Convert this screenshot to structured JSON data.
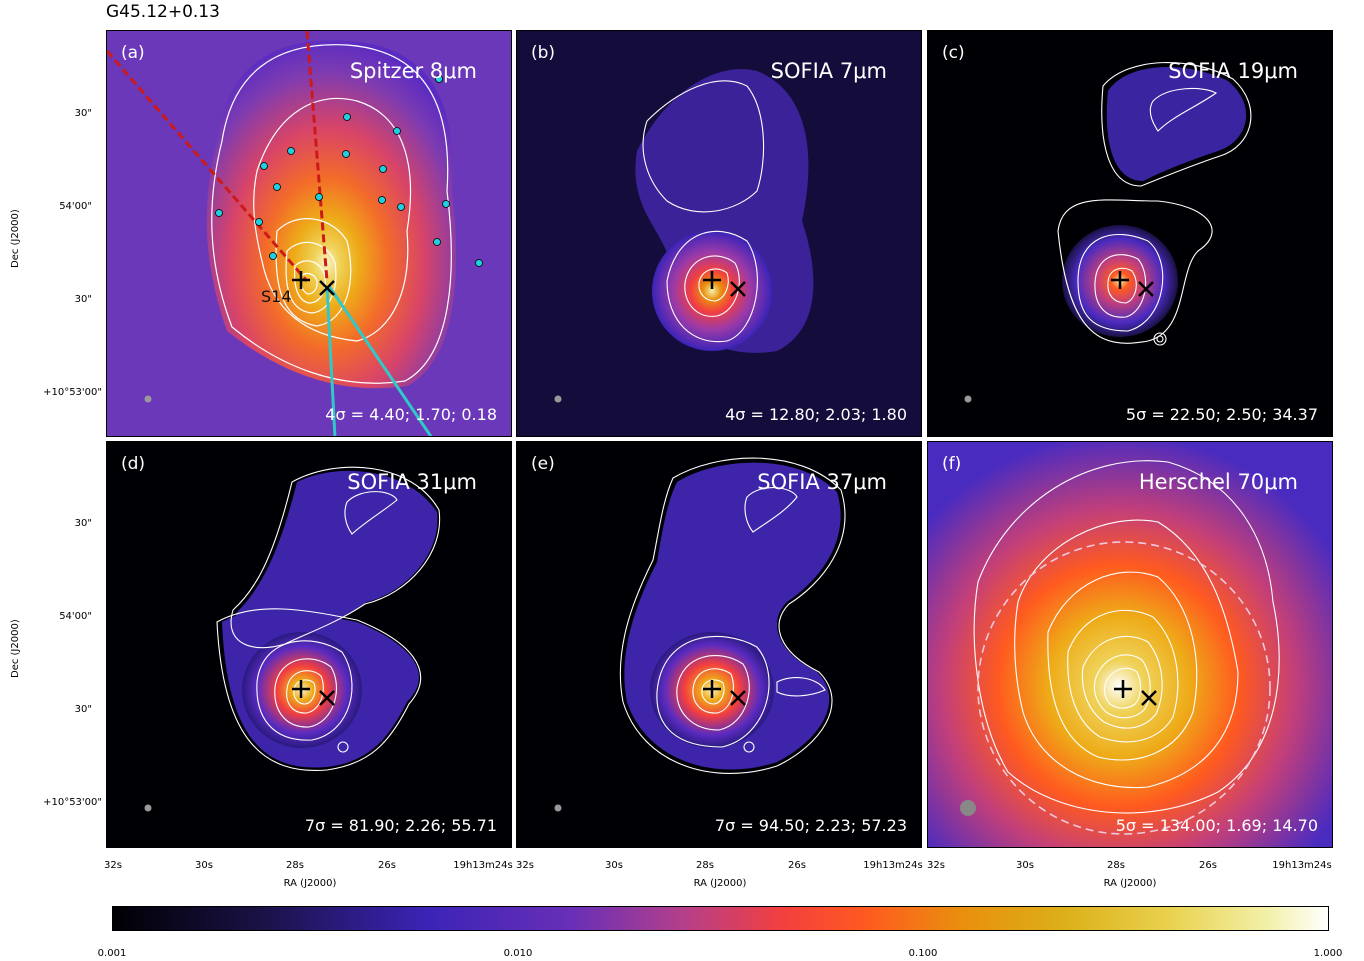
{
  "figure_title": "G45.12+0.13",
  "panels": [
    {
      "label": "(a)",
      "name": "Spitzer 8μm",
      "sigma": "4σ = 4.40;  1.70;  0.18"
    },
    {
      "label": "(b)",
      "name": "SOFIA 7μm",
      "sigma": "4σ = 12.80;  2.03;  1.80"
    },
    {
      "label": "(c)",
      "name": "SOFIA 19μm",
      "sigma": "5σ = 22.50;  2.50;  34.37"
    },
    {
      "label": "(d)",
      "name": "SOFIA 31μm",
      "sigma": "7σ = 81.90;  2.26;  55.71"
    },
    {
      "label": "(e)",
      "name": "SOFIA 37μm",
      "sigma": "7σ = 94.50;  2.23;  57.23"
    },
    {
      "label": "(f)",
      "name": "Herschel 70μm",
      "sigma": "5σ = 134.00;  1.69;  14.70"
    }
  ],
  "source_label": "S14",
  "axes": {
    "y_label": "Dec (J2000)",
    "x_label": "RA (J2000)",
    "y_ticks": [
      "30\"",
      "54'00\"",
      "30\"",
      "+10°53'00\""
    ],
    "x_ticks": [
      "32s",
      "30s",
      "28s",
      "26s",
      "19h13m24s"
    ]
  },
  "colorbar": {
    "ticks": [
      "0.001",
      "0.010",
      "0.100",
      "1.000"
    ],
    "scale": "log",
    "colormap": "gnuplot-like"
  },
  "colors": {
    "contour": "#ffffff",
    "markers": "#000000",
    "ysos": "#20d0e0"
  }
}
